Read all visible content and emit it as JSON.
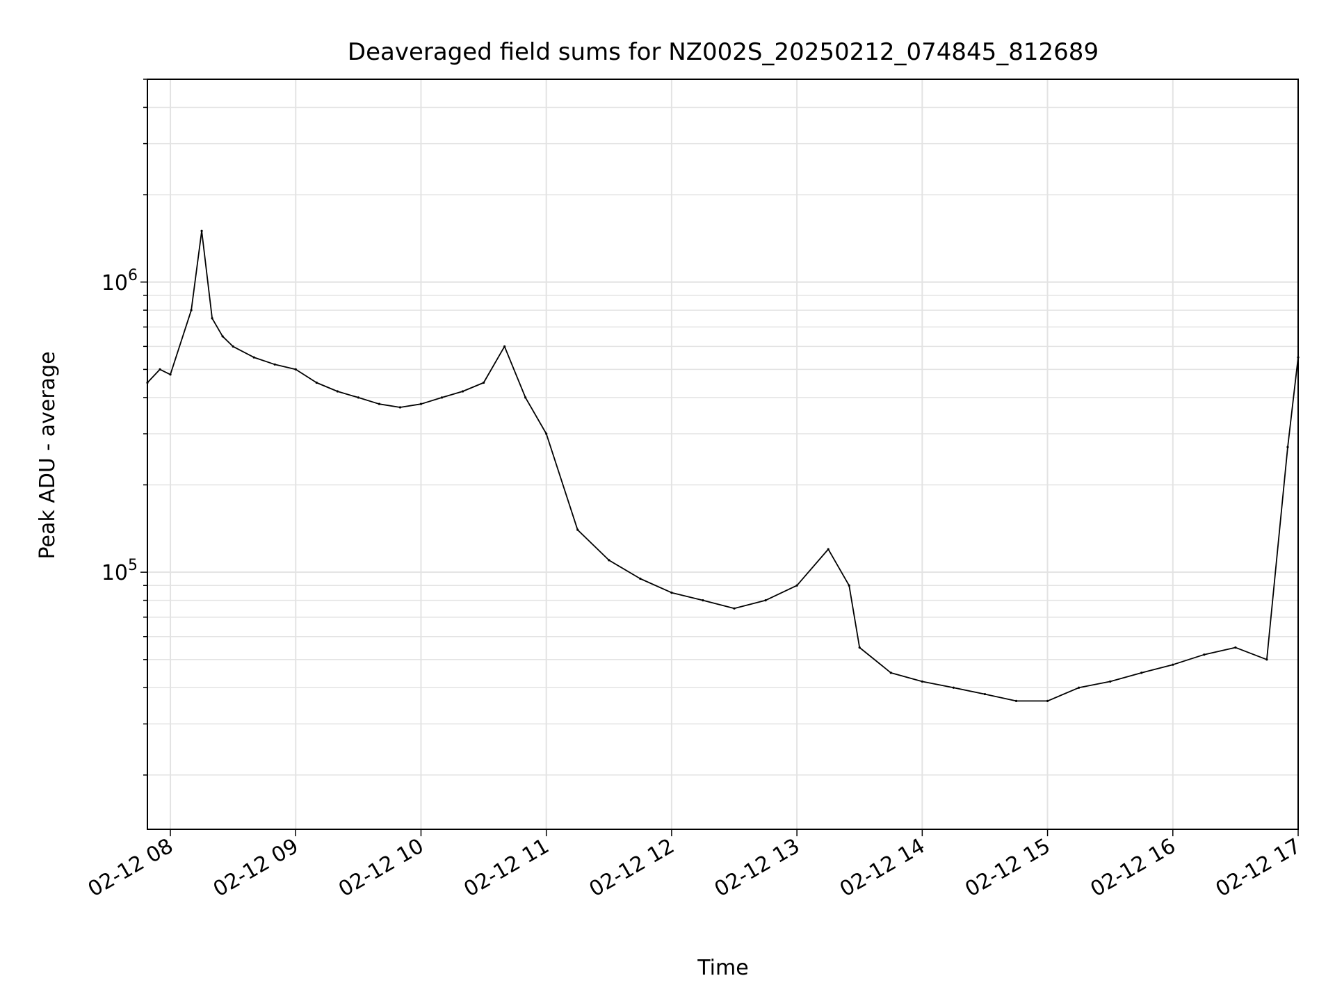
{
  "chart_data": {
    "type": "line",
    "title": "Deaveraged field sums for NZ002S_20250212_074845_812689",
    "xlabel": "Time",
    "ylabel": "Peak ADU - average",
    "y_scale": "log",
    "ylim": [
      13000,
      5000000
    ],
    "xlim": [
      "2025-02-12 07:49",
      "2025-02-12 17:00"
    ],
    "grid": true,
    "line_color": "#000000",
    "x_ticks": [
      {
        "value": "2025-02-12 08:00",
        "label": "02-12 08"
      },
      {
        "value": "2025-02-12 09:00",
        "label": "02-12 09"
      },
      {
        "value": "2025-02-12 10:00",
        "label": "02-12 10"
      },
      {
        "value": "2025-02-12 11:00",
        "label": "02-12 11"
      },
      {
        "value": "2025-02-12 12:00",
        "label": "02-12 12"
      },
      {
        "value": "2025-02-12 13:00",
        "label": "02-12 13"
      },
      {
        "value": "2025-02-12 14:00",
        "label": "02-12 14"
      },
      {
        "value": "2025-02-12 15:00",
        "label": "02-12 15"
      },
      {
        "value": "2025-02-12 16:00",
        "label": "02-12 16"
      },
      {
        "value": "2025-02-12 17:00",
        "label": "02-12 17"
      }
    ],
    "y_ticks": [
      {
        "value": 100000,
        "base": "10",
        "exp": "5"
      },
      {
        "value": 1000000,
        "base": "10",
        "exp": "6"
      }
    ],
    "series": [
      {
        "x": [
          "2025-02-12 07:49",
          "2025-02-12 07:55",
          "2025-02-12 08:00",
          "2025-02-12 08:10",
          "2025-02-12 08:15",
          "2025-02-12 08:20",
          "2025-02-12 08:25",
          "2025-02-12 08:30",
          "2025-02-12 08:40",
          "2025-02-12 08:50",
          "2025-02-12 09:00",
          "2025-02-12 09:10",
          "2025-02-12 09:20",
          "2025-02-12 09:30",
          "2025-02-12 09:40",
          "2025-02-12 09:50",
          "2025-02-12 10:00",
          "2025-02-12 10:10",
          "2025-02-12 10:20",
          "2025-02-12 10:30",
          "2025-02-12 10:40",
          "2025-02-12 10:50",
          "2025-02-12 11:00",
          "2025-02-12 11:15",
          "2025-02-12 11:30",
          "2025-02-12 11:45",
          "2025-02-12 12:00",
          "2025-02-12 12:15",
          "2025-02-12 12:30",
          "2025-02-12 12:45",
          "2025-02-12 13:00",
          "2025-02-12 13:15",
          "2025-02-12 13:25",
          "2025-02-12 13:30",
          "2025-02-12 13:45",
          "2025-02-12 14:00",
          "2025-02-12 14:15",
          "2025-02-12 14:30",
          "2025-02-12 14:45",
          "2025-02-12 15:00",
          "2025-02-12 15:15",
          "2025-02-12 15:30",
          "2025-02-12 15:45",
          "2025-02-12 16:00",
          "2025-02-12 16:15",
          "2025-02-12 16:30",
          "2025-02-12 16:45",
          "2025-02-12 16:55",
          "2025-02-12 17:00"
        ],
        "y": [
          450000,
          500000,
          480000,
          800000,
          1500000,
          750000,
          650000,
          600000,
          550000,
          520000,
          500000,
          450000,
          420000,
          400000,
          380000,
          370000,
          380000,
          400000,
          420000,
          450000,
          600000,
          400000,
          300000,
          140000,
          110000,
          95000,
          85000,
          80000,
          75000,
          80000,
          90000,
          120000,
          90000,
          55000,
          45000,
          42000,
          40000,
          38000,
          36000,
          36000,
          40000,
          42000,
          45000,
          48000,
          52000,
          55000,
          50000,
          270000,
          550000
        ]
      }
    ]
  }
}
